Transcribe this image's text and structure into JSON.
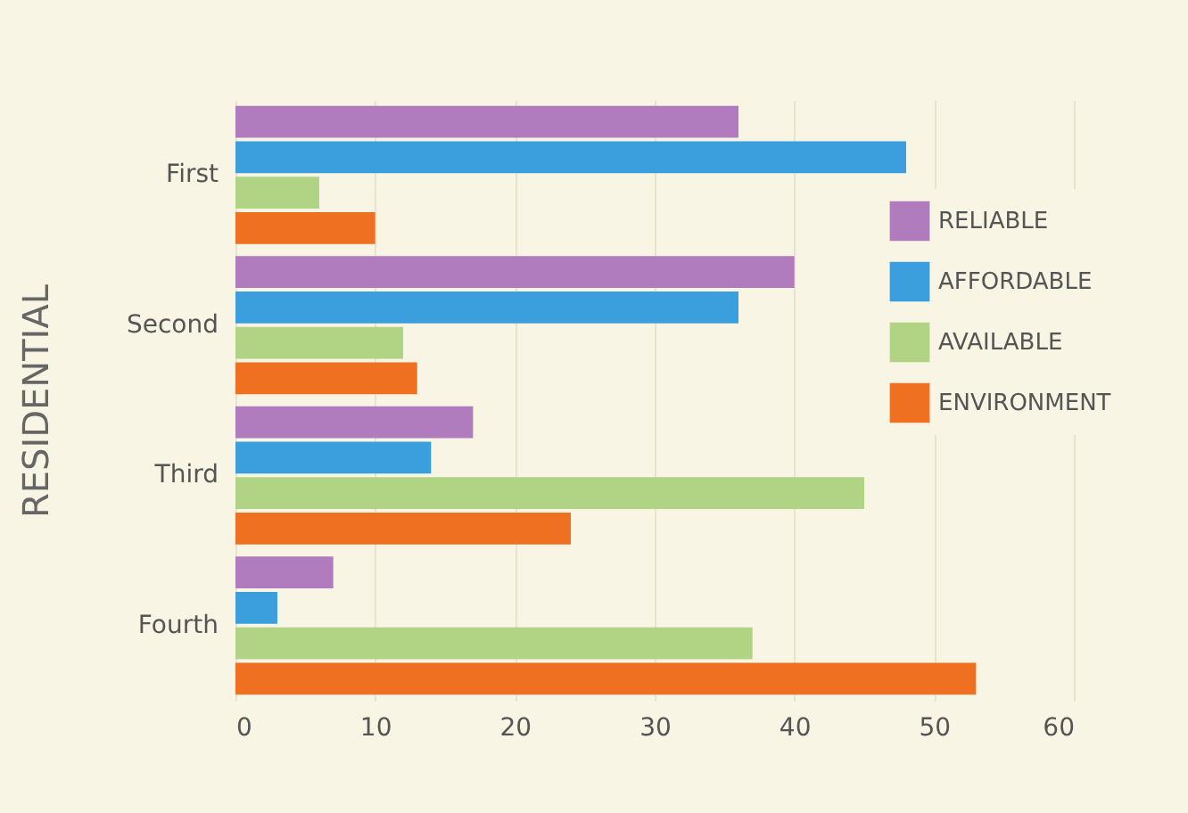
{
  "chart_data": {
    "type": "bar",
    "orientation": "horizontal",
    "ylabel": "RESIDENTIAL",
    "categories": [
      "First",
      "Second",
      "Third",
      "Fourth"
    ],
    "series": [
      {
        "name": "RELIABLE",
        "color": "#b07cbe",
        "values": [
          36,
          40,
          17,
          7
        ]
      },
      {
        "name": "AFFORDABLE",
        "color": "#3b9fdd",
        "values": [
          48,
          36,
          14,
          3
        ]
      },
      {
        "name": "AVAILABLE",
        "color": "#b0d483",
        "values": [
          6,
          12,
          45,
          37
        ]
      },
      {
        "name": "ENVIRONMENT",
        "color": "#f07022",
        "values": [
          10,
          13,
          24,
          53
        ]
      }
    ],
    "xlim": [
      0,
      60
    ],
    "xticks": [
      0,
      10,
      20,
      30,
      40,
      50,
      60
    ],
    "grid": "x",
    "legend": "right"
  }
}
